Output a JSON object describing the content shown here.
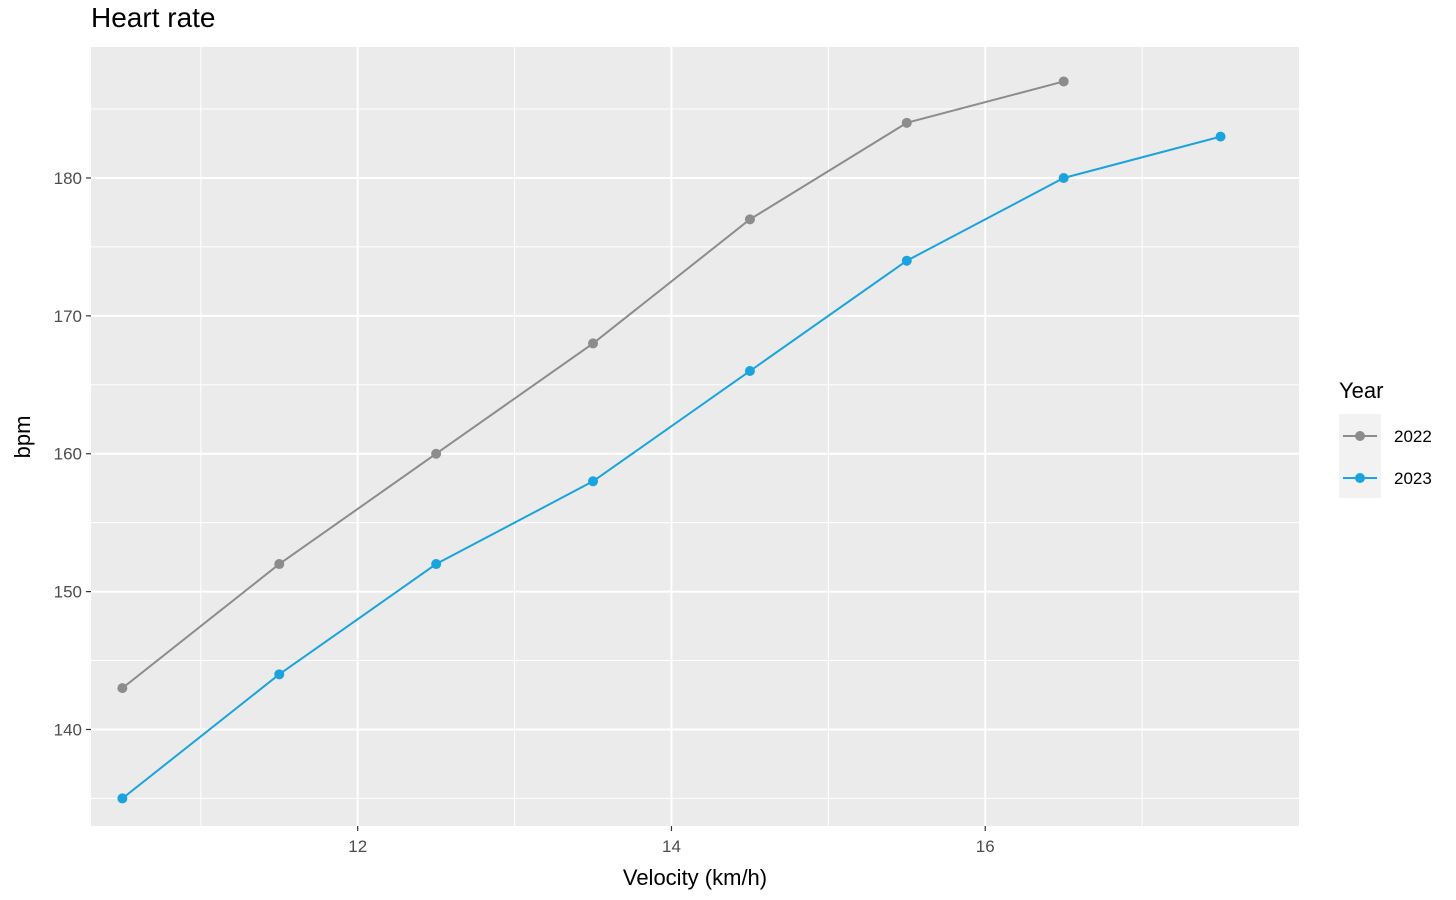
{
  "chart_data": {
    "type": "line",
    "title": "Heart rate",
    "xlabel": "Velocity (km/h)",
    "ylabel": "bpm",
    "xlim": [
      10.3,
      18.0
    ],
    "ylim": [
      133.0,
      189.5
    ],
    "x_ticks": [
      12,
      14,
      16
    ],
    "x_minor_ticks": [
      11,
      13,
      15,
      17
    ],
    "y_ticks": [
      140,
      150,
      160,
      170,
      180
    ],
    "y_minor_ticks": [
      135,
      145,
      155,
      165,
      175,
      185
    ],
    "grid": true,
    "legend": {
      "title": "Year",
      "position": "right"
    },
    "series": [
      {
        "name": "2022",
        "color": "#8c8c8c",
        "x": [
          10.5,
          11.5,
          12.5,
          13.5,
          14.5,
          15.5,
          16.5
        ],
        "y": [
          143,
          152,
          160,
          168,
          177,
          184,
          187
        ]
      },
      {
        "name": "2023",
        "color": "#1ba3dd",
        "x": [
          10.5,
          11.5,
          12.5,
          13.5,
          14.5,
          15.5,
          16.5,
          17.5
        ],
        "y": [
          135,
          144,
          152,
          158,
          166,
          174,
          180,
          183
        ]
      }
    ]
  }
}
